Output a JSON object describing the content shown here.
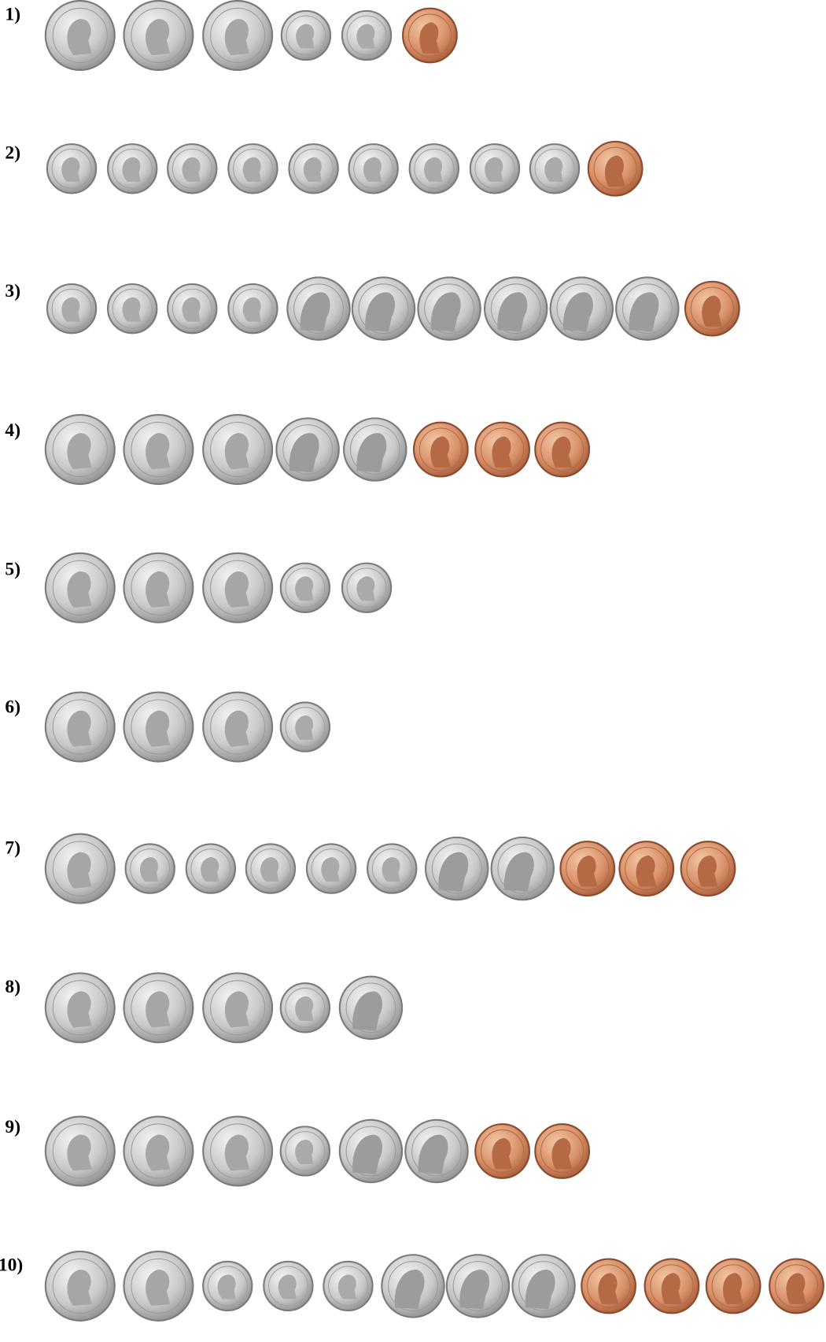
{
  "problems": [
    {
      "label": "1)"
    },
    {
      "label": "2)"
    },
    {
      "label": "3)"
    },
    {
      "label": "4)"
    },
    {
      "label": "5)"
    },
    {
      "label": "6)"
    },
    {
      "label": "7)"
    },
    {
      "label": "8)"
    },
    {
      "label": "9)"
    },
    {
      "label": "10)"
    }
  ]
}
